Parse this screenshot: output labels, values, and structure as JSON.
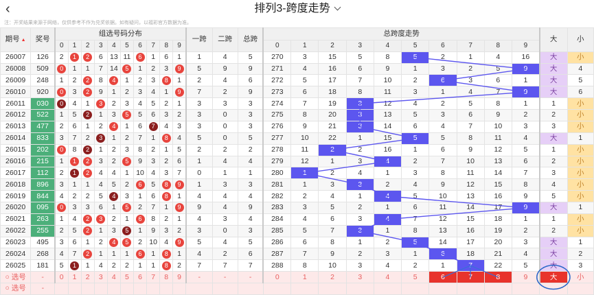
{
  "header": {
    "title": "排列3-跨度走势",
    "note": "注：开奖结果来源于网络，仅供参考不作为兑奖依据。如有疑问，以福彩官方数据为准。"
  },
  "columns": {
    "period": "期号",
    "prize": "奖号",
    "dist": "组选号码分布",
    "span1": "一跨",
    "span2": "二跨",
    "total": "总跨",
    "trend": "总跨度走势",
    "big": "大",
    "small": "小",
    "digits": [
      "0",
      "1",
      "2",
      "3",
      "4",
      "5",
      "6",
      "7",
      "8",
      "9"
    ]
  },
  "rows": [
    {
      "p": "26007",
      "n": "126",
      "dist": [
        "2",
        "1",
        "2",
        "6",
        "13",
        "11",
        "6",
        "1",
        "6",
        "1"
      ],
      "s1": "1",
      "s2": "4",
      "st": "5",
      "tr": [
        "270",
        "3",
        "15",
        "5",
        "8",
        "5",
        "2",
        "1",
        "4",
        "16"
      ],
      "span": 5,
      "bs": "大",
      "sv": "小"
    },
    {
      "p": "26008",
      "n": "509",
      "dist": [
        "0",
        "1",
        "1",
        "7",
        "14",
        "5",
        "1",
        "2",
        "3",
        "9"
      ],
      "s1": "5",
      "s2": "9",
      "st": "9",
      "tr": [
        "271",
        "4",
        "16",
        "6",
        "9",
        "1",
        "3",
        "2",
        "5",
        "9"
      ],
      "span": 9,
      "bs": "大",
      "sv": "4"
    },
    {
      "p": "26009",
      "n": "248",
      "dist": [
        "1",
        "2",
        "2",
        "8",
        "4",
        "1",
        "2",
        "3",
        "8",
        "1"
      ],
      "s1": "2",
      "s2": "4",
      "st": "6",
      "tr": [
        "272",
        "5",
        "17",
        "7",
        "10",
        "2",
        "6",
        "3",
        "6",
        "1"
      ],
      "span": 6,
      "bs": "大",
      "sv": "5"
    },
    {
      "p": "26010",
      "n": "920",
      "dist": [
        "0",
        "3",
        "2",
        "9",
        "1",
        "2",
        "3",
        "4",
        "1",
        "9"
      ],
      "s1": "7",
      "s2": "2",
      "st": "9",
      "tr": [
        "273",
        "6",
        "18",
        "8",
        "11",
        "3",
        "1",
        "4",
        "7",
        "9"
      ],
      "span": 9,
      "bs": "大",
      "sv": "6"
    },
    {
      "p": "26011",
      "n": "030",
      "dist": [
        "0",
        "4",
        "1",
        "3",
        "2",
        "3",
        "4",
        "5",
        "2",
        "1"
      ],
      "s1": "3",
      "s2": "3",
      "st": "3",
      "tr": [
        "274",
        "7",
        "19",
        "3",
        "12",
        "4",
        "2",
        "5",
        "8",
        "1"
      ],
      "span": 3,
      "bs": "1",
      "sv": "小"
    },
    {
      "p": "26012",
      "n": "522",
      "dist": [
        "1",
        "5",
        "2",
        "1",
        "3",
        "5",
        "5",
        "6",
        "3",
        "2"
      ],
      "s1": "3",
      "s2": "0",
      "st": "3",
      "tr": [
        "275",
        "8",
        "20",
        "3",
        "13",
        "5",
        "3",
        "6",
        "9",
        "2"
      ],
      "span": 3,
      "bs": "2",
      "sv": "小"
    },
    {
      "p": "26013",
      "n": "477",
      "dist": [
        "2",
        "6",
        "1",
        "2",
        "4",
        "1",
        "6",
        "7",
        "4",
        "3"
      ],
      "s1": "3",
      "s2": "0",
      "st": "3",
      "tr": [
        "276",
        "9",
        "21",
        "3",
        "14",
        "6",
        "4",
        "7",
        "10",
        "3"
      ],
      "span": 3,
      "bs": "3",
      "sv": "小"
    },
    {
      "p": "26014",
      "n": "833",
      "dist": [
        "3",
        "7",
        "2",
        "3",
        "1",
        "2",
        "7",
        "1",
        "8",
        "4"
      ],
      "s1": "5",
      "s2": "0",
      "st": "5",
      "tr": [
        "277",
        "10",
        "22",
        "1",
        "15",
        "5",
        "5",
        "8",
        "11",
        "4"
      ],
      "span": 5,
      "bs": "大",
      "sv": "1"
    },
    {
      "p": "26015",
      "n": "202",
      "dist": [
        "0",
        "8",
        "2",
        "1",
        "2",
        "3",
        "8",
        "2",
        "1",
        "5"
      ],
      "s1": "2",
      "s2": "2",
      "st": "2",
      "tr": [
        "278",
        "11",
        "2",
        "2",
        "16",
        "1",
        "6",
        "9",
        "12",
        "5"
      ],
      "span": 2,
      "bs": "1",
      "sv": "小"
    },
    {
      "p": "26016",
      "n": "215",
      "dist": [
        "1",
        "1",
        "2",
        "3",
        "2",
        "5",
        "9",
        "3",
        "2",
        "6"
      ],
      "s1": "1",
      "s2": "4",
      "st": "4",
      "tr": [
        "279",
        "12",
        "1",
        "3",
        "4",
        "2",
        "7",
        "10",
        "13",
        "6"
      ],
      "span": 4,
      "bs": "2",
      "sv": "小"
    },
    {
      "p": "26017",
      "n": "112",
      "dist": [
        "2",
        "1",
        "2",
        "4",
        "4",
        "1",
        "10",
        "4",
        "3",
        "7"
      ],
      "s1": "0",
      "s2": "1",
      "st": "1",
      "tr": [
        "280",
        "1",
        "2",
        "4",
        "1",
        "3",
        "8",
        "11",
        "14",
        "7"
      ],
      "span": 1,
      "bs": "3",
      "sv": "小"
    },
    {
      "p": "26018",
      "n": "896",
      "dist": [
        "3",
        "1",
        "1",
        "4",
        "5",
        "2",
        "6",
        "5",
        "8",
        "9"
      ],
      "s1": "1",
      "s2": "3",
      "st": "3",
      "tr": [
        "281",
        "1",
        "3",
        "3",
        "2",
        "4",
        "9",
        "12",
        "15",
        "8"
      ],
      "span": 3,
      "bs": "4",
      "sv": "小"
    },
    {
      "p": "26019",
      "n": "844",
      "dist": [
        "4",
        "2",
        "2",
        "5",
        "4",
        "3",
        "1",
        "6",
        "8",
        "1"
      ],
      "s1": "4",
      "s2": "4",
      "st": "4",
      "tr": [
        "282",
        "2",
        "4",
        "1",
        "4",
        "5",
        "10",
        "13",
        "16",
        "9"
      ],
      "span": 4,
      "bs": "5",
      "sv": "小"
    },
    {
      "p": "26020",
      "n": "095",
      "dist": [
        "0",
        "3",
        "3",
        "6",
        "1",
        "5",
        "2",
        "7",
        "1",
        "9"
      ],
      "s1": "9",
      "s2": "4",
      "st": "9",
      "tr": [
        "283",
        "3",
        "5",
        "2",
        "1",
        "6",
        "11",
        "14",
        "17",
        "9"
      ],
      "span": 9,
      "bs": "大",
      "sv": "1"
    },
    {
      "p": "26021",
      "n": "263",
      "dist": [
        "1",
        "4",
        "2",
        "3",
        "2",
        "1",
        "6",
        "8",
        "2",
        "1"
      ],
      "s1": "4",
      "s2": "3",
      "st": "4",
      "tr": [
        "284",
        "4",
        "6",
        "3",
        "4",
        "7",
        "12",
        "15",
        "18",
        "1"
      ],
      "span": 4,
      "bs": "1",
      "sv": "小"
    },
    {
      "p": "26022",
      "n": "255",
      "dist": [
        "2",
        "5",
        "2",
        "1",
        "3",
        "5",
        "1",
        "9",
        "3",
        "2"
      ],
      "s1": "3",
      "s2": "0",
      "st": "3",
      "tr": [
        "285",
        "5",
        "7",
        "3",
        "1",
        "8",
        "13",
        "16",
        "19",
        "2"
      ],
      "span": 3,
      "bs": "2",
      "sv": "小"
    },
    {
      "p": "26023",
      "n": "495",
      "dist": [
        "3",
        "6",
        "1",
        "2",
        "4",
        "5",
        "2",
        "10",
        "4",
        "9"
      ],
      "s1": "5",
      "s2": "4",
      "st": "5",
      "tr": [
        "286",
        "6",
        "8",
        "1",
        "2",
        "5",
        "14",
        "17",
        "20",
        "3"
      ],
      "span": 5,
      "bs": "大",
      "sv": "1"
    },
    {
      "p": "26024",
      "n": "268",
      "dist": [
        "4",
        "7",
        "2",
        "1",
        "1",
        "1",
        "6",
        "1",
        "8",
        "1"
      ],
      "s1": "4",
      "s2": "2",
      "st": "6",
      "tr": [
        "287",
        "7",
        "9",
        "2",
        "3",
        "1",
        "6",
        "18",
        "21",
        "4"
      ],
      "span": 6,
      "bs": "大",
      "sv": "2"
    },
    {
      "p": "26025",
      "n": "181",
      "dist": [
        "5",
        "1",
        "1",
        "4",
        "2",
        "2",
        "1",
        "1",
        "8",
        "2"
      ],
      "s1": "7",
      "s2": "7",
      "st": "7",
      "tr": [
        "288",
        "8",
        "10",
        "3",
        "4",
        "2",
        "1",
        "7",
        "22",
        "5"
      ],
      "span": 7,
      "bs": "大",
      "sv": "3"
    }
  ],
  "select_row": {
    "label": "选号",
    "dash": "-",
    "digits": [
      "0",
      "1",
      "2",
      "3",
      "4",
      "5",
      "6",
      "7",
      "8",
      "9"
    ],
    "bs_big": "大",
    "bs_small": "小"
  },
  "select_row2": {
    "label": "选号",
    "dash": "-"
  },
  "colors": {
    "hit": "#5c56ef",
    "ball": "#e8443d",
    "big": "#e6cff7",
    "small": "#ffe2a3",
    "green": "#4caf7a"
  }
}
